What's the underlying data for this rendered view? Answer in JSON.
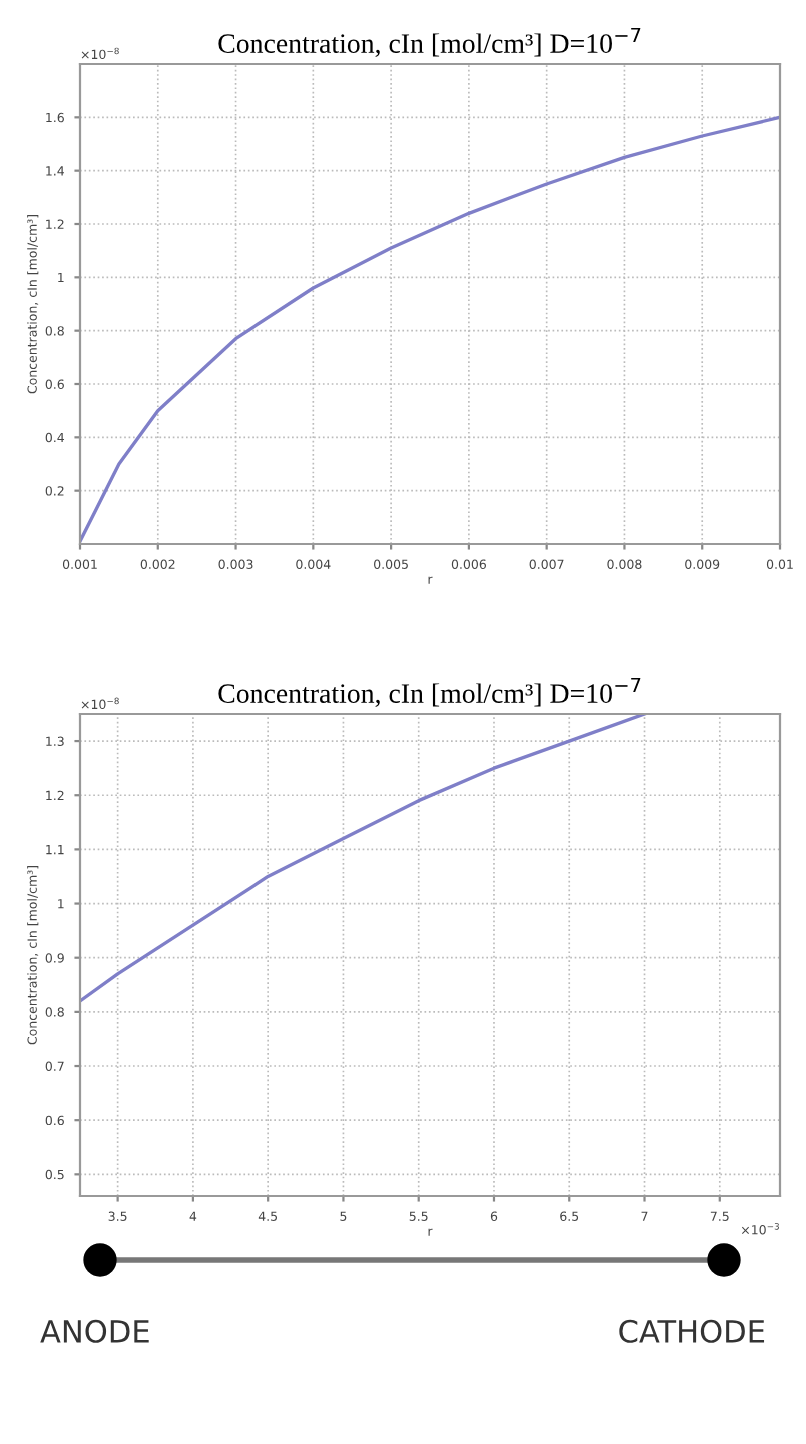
{
  "chart_data": [
    {
      "type": "line",
      "title": "Concentration, cIn [mol/cm³] D=10$^{−7}$",
      "xlabel": "r",
      "ylabel": "Concentration, cIn [mol/cm³]",
      "annotations": [
        "×10$^{−8}$"
      ],
      "x": [
        0.001,
        0.0015,
        0.002,
        0.003,
        0.004,
        0.005,
        0.006,
        0.007,
        0.008,
        0.009,
        0.01
      ],
      "series": [
        {
          "color": "#7f7fc8",
          "values": [
            0.01,
            0.3,
            0.5,
            0.77,
            0.96,
            1.11,
            1.24,
            1.35,
            1.45,
            1.53,
            1.6
          ]
        }
      ],
      "xlim": [
        0.001,
        0.01
      ],
      "xticks": [
        0.001,
        0.002,
        0.003,
        0.004,
        0.005,
        0.006,
        0.007,
        0.008,
        0.009,
        0.01
      ],
      "ylim": [
        0,
        1.8
      ],
      "yticks": [
        0.2,
        0.4,
        0.6,
        0.8,
        1,
        1.2,
        1.4,
        1.6
      ],
      "grid": true,
      "line_style": "solid"
    },
    {
      "type": "line",
      "title": "Concentration, cIn [mol/cm³] D=10$^{−7}$",
      "xlabel": "r",
      "ylabel": "Concentration, cIn [mol/cm³]",
      "annotations": [
        "×10$^{−8}$",
        "×10$^{−3}$"
      ],
      "x": [
        3.25,
        3.5,
        4,
        4.5,
        5,
        5.5,
        6,
        6.5,
        7
      ],
      "series": [
        {
          "color": "#7f7fc8",
          "values": [
            0.82,
            0.87,
            0.96,
            1.05,
            1.12,
            1.19,
            1.25,
            1.3,
            1.35
          ]
        }
      ],
      "xlim": [
        3.25,
        7.9
      ],
      "xticks": [
        3.5,
        4,
        4.5,
        5,
        5.5,
        6,
        6.5,
        7,
        7.5
      ],
      "ylim": [
        0.46,
        1.35
      ],
      "yticks": [
        0.5,
        0.6,
        0.7,
        0.8,
        0.9,
        1,
        1.1,
        1.2,
        1.3
      ],
      "grid": true,
      "line_style": "solid"
    },
    {
      "type": "other",
      "annotations": [
        "ANODE",
        "CATHODE"
      ]
    }
  ]
}
